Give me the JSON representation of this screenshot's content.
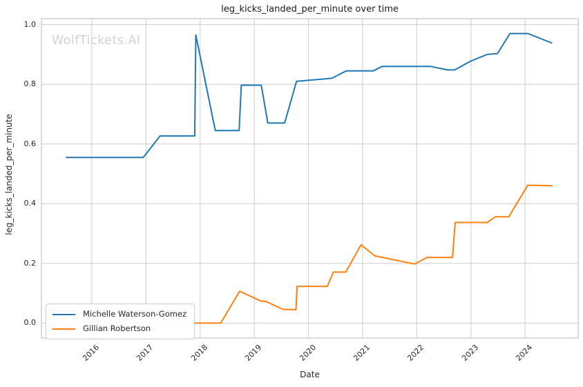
{
  "title": "leg_kicks_landed_per_minute over time",
  "watermark": "WolfTickets.AI",
  "chart_data": {
    "type": "line",
    "title": "leg_kicks_landed_per_minute over time",
    "xlabel": "Date",
    "ylabel": "leg_kicks_landed_per_minute",
    "xlim": [
      2015.07,
      2024.98
    ],
    "ylim": [
      -0.05,
      1.02
    ],
    "grid": true,
    "legend_position": "lower-left",
    "background_color": "#ffffff",
    "grid_color": "#cccccc",
    "spine_color": "#c4c4c4",
    "x_ticks": [
      {
        "v": 2016,
        "label": "2016"
      },
      {
        "v": 2017,
        "label": "2017"
      },
      {
        "v": 2018,
        "label": "2018"
      },
      {
        "v": 2019,
        "label": "2019"
      },
      {
        "v": 2020,
        "label": "2020"
      },
      {
        "v": 2021,
        "label": "2021"
      },
      {
        "v": 2022,
        "label": "2022"
      },
      {
        "v": 2023,
        "label": "2023"
      },
      {
        "v": 2024,
        "label": "2024"
      }
    ],
    "y_ticks": [
      {
        "v": 0.0,
        "label": "0.0"
      },
      {
        "v": 0.2,
        "label": "0.2"
      },
      {
        "v": 0.4,
        "label": "0.4"
      },
      {
        "v": 0.6,
        "label": "0.6"
      },
      {
        "v": 0.8,
        "label": "0.8"
      },
      {
        "v": 1.0,
        "label": "1.0"
      }
    ],
    "series": [
      {
        "name": "Michelle Waterson-Gomez",
        "color": "#1f77b4",
        "points": [
          [
            2015.52,
            0.555
          ],
          [
            2016.95,
            0.555
          ],
          [
            2017.26,
            0.627
          ],
          [
            2017.9,
            0.627
          ],
          [
            2017.92,
            0.965
          ],
          [
            2018.28,
            0.645
          ],
          [
            2018.72,
            0.645
          ],
          [
            2018.76,
            0.797
          ],
          [
            2019.13,
            0.797
          ],
          [
            2019.25,
            0.67
          ],
          [
            2019.56,
            0.67
          ],
          [
            2019.78,
            0.81
          ],
          [
            2020.43,
            0.82
          ],
          [
            2020.7,
            0.845
          ],
          [
            2021.2,
            0.845
          ],
          [
            2021.36,
            0.86
          ],
          [
            2022.25,
            0.86
          ],
          [
            2022.57,
            0.848
          ],
          [
            2022.7,
            0.848
          ],
          [
            2023.0,
            0.878
          ],
          [
            2023.3,
            0.9
          ],
          [
            2023.49,
            0.903
          ],
          [
            2023.72,
            0.97
          ],
          [
            2024.05,
            0.97
          ],
          [
            2024.5,
            0.938
          ]
        ]
      },
      {
        "name": "Gillian Robertson",
        "color": "#ff7f0e",
        "points": [
          [
            2017.9,
            0.0
          ],
          [
            2018.38,
            0.0
          ],
          [
            2018.73,
            0.107
          ],
          [
            2019.12,
            0.074
          ],
          [
            2019.22,
            0.072
          ],
          [
            2019.53,
            0.046
          ],
          [
            2019.77,
            0.045
          ],
          [
            2019.79,
            0.123
          ],
          [
            2020.35,
            0.123
          ],
          [
            2020.46,
            0.171
          ],
          [
            2020.69,
            0.171
          ],
          [
            2020.97,
            0.262
          ],
          [
            2021.23,
            0.225
          ],
          [
            2021.96,
            0.198
          ],
          [
            2022.19,
            0.22
          ],
          [
            2022.66,
            0.22
          ],
          [
            2022.71,
            0.337
          ],
          [
            2023.3,
            0.337
          ],
          [
            2023.45,
            0.356
          ],
          [
            2023.7,
            0.356
          ],
          [
            2024.05,
            0.462
          ],
          [
            2024.51,
            0.46
          ]
        ]
      }
    ]
  }
}
